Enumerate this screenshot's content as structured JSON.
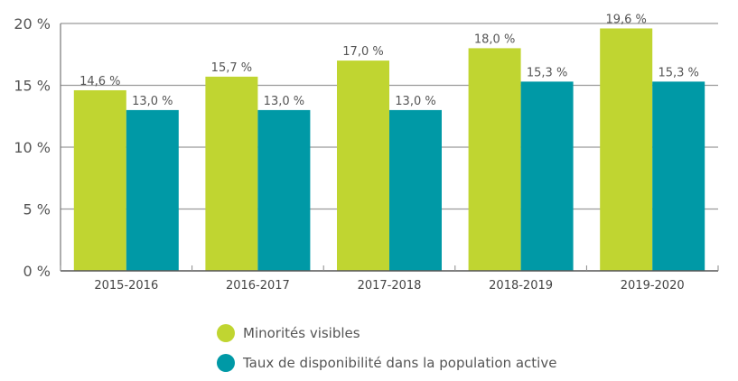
{
  "chart_data": {
    "type": "bar",
    "title": "",
    "xlabel": "",
    "ylabel": "",
    "categories": [
      "2015-2016",
      "2016-2017",
      "2017-2018",
      "2018-2019",
      "2019-2020"
    ],
    "series": [
      {
        "name": "Minorités visibles",
        "color": "#c0d531",
        "values": [
          14.6,
          15.7,
          17.0,
          18.0,
          19.6
        ],
        "labels": [
          "14,6 %",
          "15,7 %",
          "17,0 %",
          "18,0 %",
          "19,6 %"
        ]
      },
      {
        "name": "Taux de disponibilité dans la population active",
        "color": "#0099a6",
        "values": [
          13.0,
          13.0,
          13.0,
          15.3,
          15.3
        ],
        "labels": [
          "13,0 %",
          "13,0 %",
          "13,0 %",
          "15,3 %",
          "15,3 %"
        ]
      }
    ],
    "ylim": [
      0,
      20
    ],
    "yticks": [
      0,
      5,
      10,
      15,
      20
    ],
    "ytick_labels": [
      "0 %",
      "5 %",
      "10 %",
      "15 %",
      "20 %"
    ],
    "grid": true,
    "legend_position": "bottom-center"
  },
  "legend": {
    "items": [
      {
        "label": "Minorités visibles",
        "color": "#c0d531"
      },
      {
        "label": "Taux de disponibilité dans la population active",
        "color": "#0099a6"
      }
    ]
  }
}
